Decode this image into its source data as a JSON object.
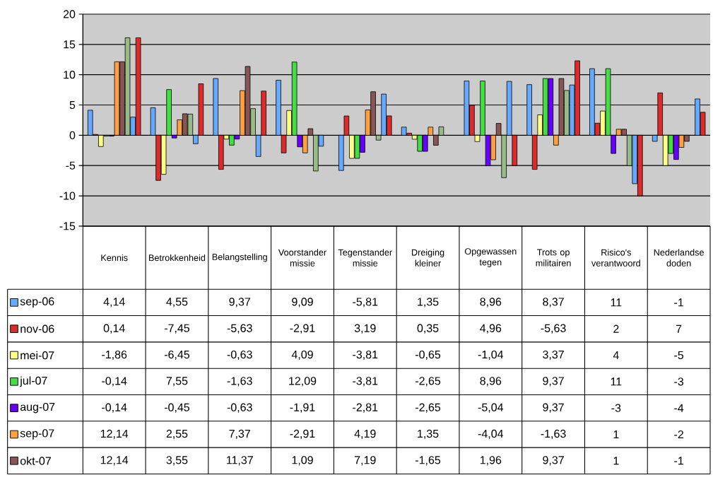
{
  "chart_data": {
    "type": "bar",
    "categories": [
      "Kennis",
      "Betrokkenheid",
      "Belangstelling",
      "Voorstander missie",
      "Tegenstander missie",
      "Dreiging kleiner",
      "Opgewassen tegen",
      "Trots op militairen",
      "Risico's verantwoord",
      "Nederlandse doden"
    ],
    "series": [
      {
        "name": "sep-06",
        "color": "#66aaff",
        "values": [
          4.14,
          4.55,
          9.37,
          9.09,
          -5.81,
          1.35,
          8.96,
          8.37,
          11,
          -1
        ],
        "value_labels": [
          "4,14",
          "4,55",
          "9,37",
          "9,09",
          "-5,81",
          "1,35",
          "8,96",
          "8,37",
          "11",
          "-1"
        ]
      },
      {
        "name": "nov-06",
        "color": "#dd2a2a",
        "values": [
          0.14,
          -7.45,
          -5.63,
          -2.91,
          3.19,
          0.35,
          4.96,
          -5.63,
          2,
          7
        ],
        "value_labels": [
          "0,14",
          "-7,45",
          "-5,63",
          "-2,91",
          "3,19",
          "0,35",
          "4,96",
          "-5,63",
          "2",
          "7"
        ]
      },
      {
        "name": "mei-07",
        "color": "#ffff88",
        "values": [
          -1.86,
          -6.45,
          -0.63,
          4.09,
          -3.81,
          -0.65,
          -1.04,
          3.37,
          4,
          -5
        ],
        "value_labels": [
          "-1,86",
          "-6,45",
          "-0,63",
          "4,09",
          "-3,81",
          "-0,65",
          "-1,04",
          "3,37",
          "4",
          "-5"
        ]
      },
      {
        "name": "jul-07",
        "color": "#44dd44",
        "values": [
          -0.14,
          7.55,
          -1.63,
          12.09,
          -3.81,
          -2.65,
          8.96,
          9.37,
          11,
          -3
        ],
        "value_labels": [
          "-0,14",
          "7,55",
          "-1,63",
          "12,09",
          "-3,81",
          "-2,65",
          "8,96",
          "9,37",
          "11",
          "-3"
        ]
      },
      {
        "name": "aug-07",
        "color": "#6600ff",
        "values": [
          -0.14,
          -0.45,
          -0.63,
          -1.91,
          -2.81,
          -2.65,
          -5.04,
          9.37,
          -3,
          -4
        ],
        "value_labels": [
          "-0,14",
          "-0,45",
          "-0,63",
          "-1,91",
          "-2,81",
          "-2,65",
          "-5,04",
          "9,37",
          "-3",
          "-4"
        ]
      },
      {
        "name": "sep-07",
        "color": "#ffa040",
        "values": [
          12.14,
          2.55,
          7.37,
          -2.91,
          4.19,
          1.35,
          -4.04,
          -1.63,
          1,
          -2
        ],
        "value_labels": [
          "12,14",
          "2,55",
          "7,37",
          "-2,91",
          "4,19",
          "1,35",
          "-4,04",
          "-1,63",
          "1",
          "-2"
        ]
      },
      {
        "name": "okt-07",
        "color": "#885555",
        "values": [
          12.14,
          3.55,
          11.37,
          1.09,
          7.19,
          -1.65,
          1.96,
          9.37,
          1,
          -1
        ],
        "value_labels": [
          "12,14",
          "3,55",
          "11,37",
          "1,09",
          "7,19",
          "-1,65",
          "1,96",
          "9,37",
          "1",
          "-1"
        ]
      },
      {
        "color": "#99bb88",
        "values": [
          16.1,
          3.5,
          4.4,
          -5.9,
          -0.8,
          1.4,
          -7.0,
          7.4,
          -5,
          null
        ]
      },
      {
        "color": "#66aaff",
        "values": [
          3,
          -1.4,
          -3.5,
          -1.8,
          6.8,
          null,
          8.9,
          8.3,
          -8,
          6
        ]
      },
      {
        "color": "#dd2a2a",
        "values": [
          16.1,
          8.5,
          7.3,
          null,
          3.2,
          null,
          -5,
          12.3,
          -10,
          3.8
        ]
      }
    ],
    "ylim": [
      -15,
      20
    ],
    "yticks": [
      -15,
      -10,
      -5,
      0,
      5,
      10,
      15,
      20
    ],
    "grid": "y",
    "legend": "bottom"
  }
}
